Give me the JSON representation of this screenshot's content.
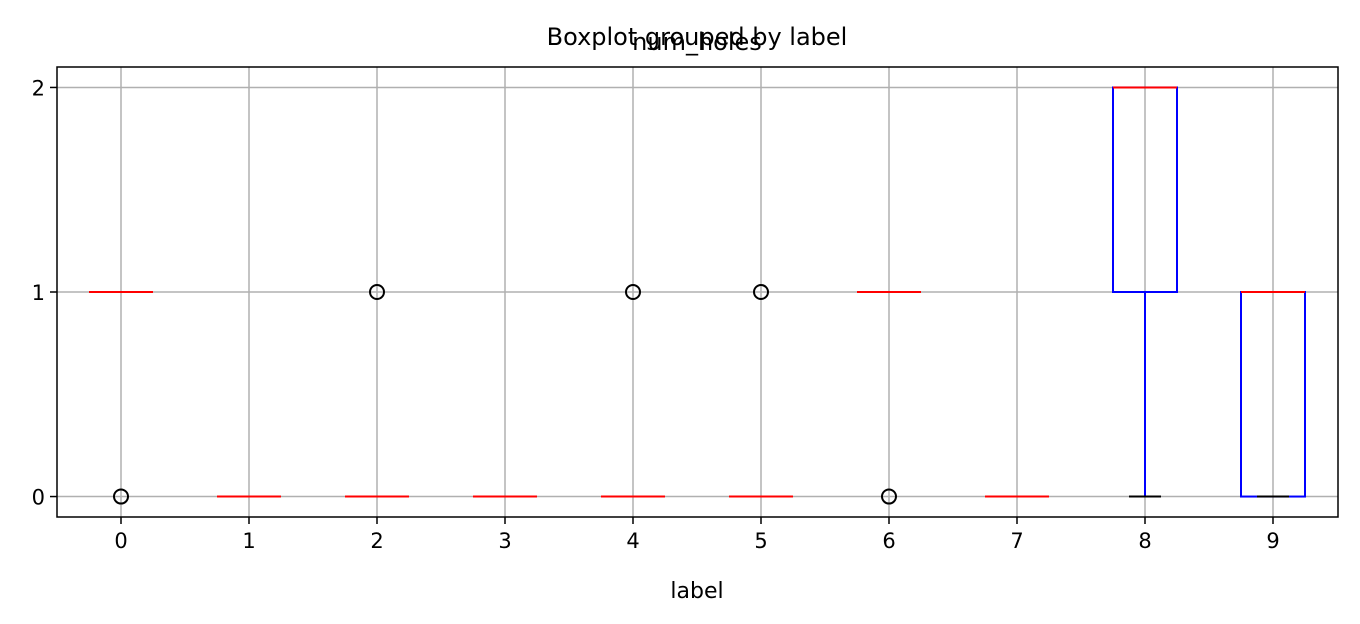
{
  "chart_data": {
    "type": "box",
    "title": "Boxplot grouped by label",
    "subtitle": "num_holes",
    "xlabel": "label",
    "ylabel": "",
    "categories": [
      "0",
      "1",
      "2",
      "3",
      "4",
      "5",
      "6",
      "7",
      "8",
      "9"
    ],
    "yticks": [
      0,
      1,
      2
    ],
    "ylim": [
      -0.1,
      2.1
    ],
    "grid": true,
    "colors": {
      "box": "#0000ff",
      "median": "#ff0000",
      "whisker": "#0000ff",
      "cap": "#000000",
      "flier": "#000000",
      "grid": "#b0b0b0"
    },
    "boxes": [
      {
        "label": "0",
        "q1": 1,
        "median": 1,
        "q3": 1,
        "whislo": 1,
        "whishi": 1,
        "fliers": [
          0
        ]
      },
      {
        "label": "1",
        "q1": 0,
        "median": 0,
        "q3": 0,
        "whislo": 0,
        "whishi": 0,
        "fliers": []
      },
      {
        "label": "2",
        "q1": 0,
        "median": 0,
        "q3": 0,
        "whislo": 0,
        "whishi": 0,
        "fliers": [
          1
        ]
      },
      {
        "label": "3",
        "q1": 0,
        "median": 0,
        "q3": 0,
        "whislo": 0,
        "whishi": 0,
        "fliers": []
      },
      {
        "label": "4",
        "q1": 0,
        "median": 0,
        "q3": 0,
        "whislo": 0,
        "whishi": 0,
        "fliers": [
          1
        ]
      },
      {
        "label": "5",
        "q1": 0,
        "median": 0,
        "q3": 0,
        "whislo": 0,
        "whishi": 0,
        "fliers": [
          1
        ]
      },
      {
        "label": "6",
        "q1": 1,
        "median": 1,
        "q3": 1,
        "whislo": 1,
        "whishi": 1,
        "fliers": [
          0
        ]
      },
      {
        "label": "7",
        "q1": 0,
        "median": 0,
        "q3": 0,
        "whislo": 0,
        "whishi": 0,
        "fliers": []
      },
      {
        "label": "8",
        "q1": 1,
        "median": 2,
        "q3": 2,
        "whislo": 0,
        "whishi": 2,
        "fliers": []
      },
      {
        "label": "9",
        "q1": 0,
        "median": 1,
        "q3": 1,
        "whislo": 0,
        "whishi": 1,
        "fliers": []
      }
    ]
  }
}
